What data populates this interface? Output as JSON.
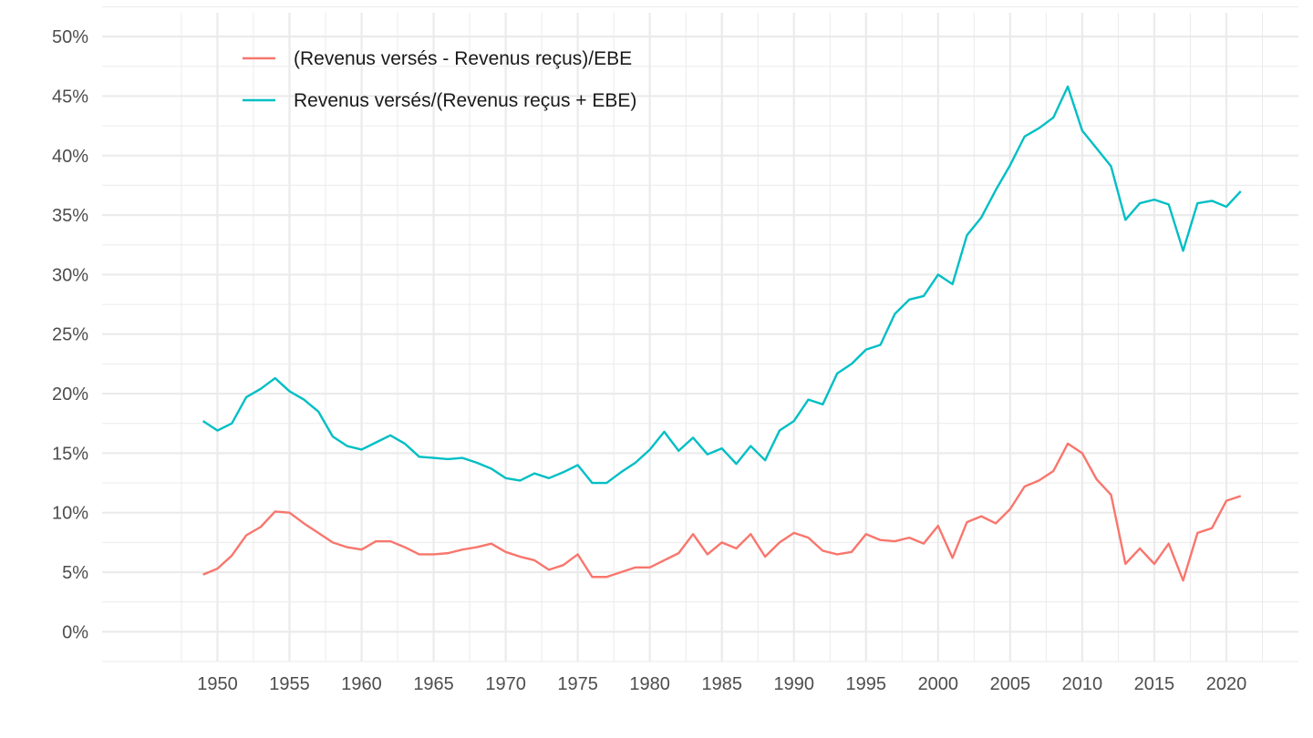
{
  "chart_data": {
    "type": "line",
    "title": "",
    "xlabel": "",
    "ylabel": "",
    "xlim": [
      1942,
      2025
    ],
    "ylim": [
      -0.025,
      0.52
    ],
    "x_ticks": [
      1950,
      1955,
      1960,
      1965,
      1970,
      1975,
      1980,
      1985,
      1990,
      1995,
      2000,
      2005,
      2010,
      2015,
      2020
    ],
    "x_tick_labels": [
      "1950",
      "1955",
      "1960",
      "1965",
      "1970",
      "1975",
      "1980",
      "1985",
      "1990",
      "1995",
      "2000",
      "2005",
      "2010",
      "2015",
      "2020"
    ],
    "y_ticks": [
      0,
      0.05,
      0.1,
      0.15,
      0.2,
      0.25,
      0.3,
      0.35,
      0.4,
      0.45,
      0.5
    ],
    "y_tick_labels": [
      "0%",
      "5%",
      "10%",
      "15%",
      "20%",
      "25%",
      "30%",
      "35%",
      "40%",
      "45%",
      "50%"
    ],
    "grid": true,
    "legend_position": "top-left",
    "x": [
      1949,
      1950,
      1951,
      1952,
      1953,
      1954,
      1955,
      1956,
      1957,
      1958,
      1959,
      1960,
      1961,
      1962,
      1963,
      1964,
      1965,
      1966,
      1967,
      1968,
      1969,
      1970,
      1971,
      1972,
      1973,
      1974,
      1975,
      1976,
      1977,
      1978,
      1979,
      1980,
      1981,
      1982,
      1983,
      1984,
      1985,
      1986,
      1987,
      1988,
      1989,
      1990,
      1991,
      1992,
      1993,
      1994,
      1995,
      1996,
      1997,
      1998,
      1999,
      2000,
      2001,
      2002,
      2003,
      2004,
      2005,
      2006,
      2007,
      2008,
      2009,
      2010,
      2011,
      2012,
      2013,
      2014,
      2015,
      2016,
      2017,
      2018,
      2019,
      2020,
      2021
    ],
    "series": [
      {
        "name": "(Revenus versés - Revenus reçus)/EBE",
        "color": "#F8766D",
        "values": [
          0.048,
          0.053,
          0.064,
          0.081,
          0.088,
          0.101,
          0.1,
          0.091,
          0.083,
          0.075,
          0.071,
          0.069,
          0.076,
          0.076,
          0.071,
          0.065,
          0.065,
          0.066,
          0.069,
          0.071,
          0.074,
          0.067,
          0.063,
          0.06,
          0.052,
          0.056,
          0.065,
          0.046,
          0.046,
          0.05,
          0.054,
          0.054,
          0.06,
          0.066,
          0.082,
          0.065,
          0.075,
          0.07,
          0.082,
          0.063,
          0.075,
          0.083,
          0.079,
          0.068,
          0.065,
          0.067,
          0.082,
          0.077,
          0.076,
          0.079,
          0.074,
          0.089,
          0.062,
          0.092,
          0.097,
          0.091,
          0.103,
          0.122,
          0.127,
          0.135,
          0.158,
          0.15,
          0.128,
          0.115,
          0.057,
          0.07,
          0.057,
          0.074,
          0.043,
          0.083,
          0.087,
          0.11,
          0.114
        ]
      },
      {
        "name": "Revenus versés/(Revenus reçus + EBE)",
        "color": "#00BFC4",
        "values": [
          0.177,
          0.169,
          0.175,
          0.197,
          0.204,
          0.213,
          0.202,
          0.195,
          0.185,
          0.164,
          0.156,
          0.153,
          0.159,
          0.165,
          0.158,
          0.147,
          0.146,
          0.145,
          0.146,
          0.142,
          0.137,
          0.129,
          0.127,
          0.133,
          0.129,
          0.134,
          0.14,
          0.125,
          0.125,
          0.134,
          0.142,
          0.153,
          0.168,
          0.152,
          0.163,
          0.149,
          0.154,
          0.141,
          0.156,
          0.144,
          0.169,
          0.177,
          0.195,
          0.191,
          0.217,
          0.225,
          0.237,
          0.241,
          0.267,
          0.279,
          0.282,
          0.3,
          0.292,
          0.333,
          0.348,
          0.371,
          0.392,
          0.416,
          0.423,
          0.432,
          0.458,
          0.421,
          0.406,
          0.391,
          0.346,
          0.36,
          0.363,
          0.359,
          0.32,
          0.36,
          0.362,
          0.357,
          0.37
        ]
      }
    ]
  }
}
